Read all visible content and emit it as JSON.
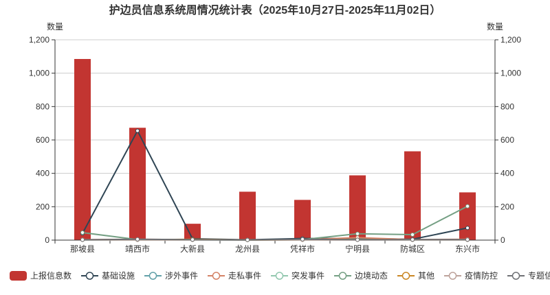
{
  "chart_data": {
    "type": "bar",
    "title": "护边员信息系统周情况统计表（2025年10月27日-2025年11月02日）",
    "y_left_label": "数量",
    "y_right_label": "数量",
    "ylim": [
      0,
      1200
    ],
    "yticks": [
      0,
      200,
      400,
      600,
      800,
      1000,
      1200
    ],
    "ytick_labels": [
      "0",
      "200",
      "400",
      "600",
      "800",
      "1,000",
      "1,200"
    ],
    "grid": true,
    "legend_position": "bottom",
    "categories": [
      "那坡县",
      "靖西市",
      "大新县",
      "龙州县",
      "凭祥市",
      "宁明县",
      "防城区",
      "东兴市"
    ],
    "series": [
      {
        "name": "上报信息数",
        "kind": "bar",
        "color": "#c23531",
        "values": [
          1085,
          673,
          98,
          290,
          241,
          388,
          532,
          286
        ]
      },
      {
        "name": "基础设施",
        "kind": "line",
        "color": "#2f4554",
        "values": [
          40,
          655,
          8,
          2,
          10,
          10,
          5,
          73
        ]
      },
      {
        "name": "涉外事件",
        "kind": "line",
        "color": "#61a0a8",
        "values": [
          2,
          2,
          2,
          1,
          2,
          5,
          2,
          3
        ]
      },
      {
        "name": "走私事件",
        "kind": "line",
        "color": "#d48265",
        "values": [
          3,
          5,
          3,
          1,
          2,
          15,
          3,
          5
        ]
      },
      {
        "name": "突发事件",
        "kind": "line",
        "color": "#91c7ae",
        "values": [
          1,
          1,
          1,
          1,
          1,
          2,
          1,
          1
        ]
      },
      {
        "name": "边境动态",
        "kind": "line",
        "color": "#749f83",
        "values": [
          45,
          3,
          2,
          1,
          3,
          38,
          33,
          203
        ]
      },
      {
        "name": "其他",
        "kind": "line",
        "color": "#ca8622",
        "values": [
          2,
          2,
          5,
          1,
          2,
          3,
          2,
          2
        ]
      },
      {
        "name": "疫情防控",
        "kind": "line",
        "color": "#bda29a",
        "values": [
          1,
          1,
          1,
          1,
          1,
          1,
          1,
          1
        ]
      },
      {
        "name": "专题信息",
        "kind": "line",
        "color": "#6e7074",
        "values": [
          2,
          5,
          3,
          1,
          5,
          2,
          3,
          3
        ]
      }
    ]
  }
}
